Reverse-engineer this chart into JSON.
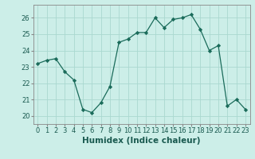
{
  "x": [
    0,
    1,
    2,
    3,
    4,
    5,
    6,
    7,
    8,
    9,
    10,
    11,
    12,
    13,
    14,
    15,
    16,
    17,
    18,
    19,
    20,
    21,
    22,
    23
  ],
  "y": [
    23.2,
    23.4,
    23.5,
    22.7,
    22.2,
    20.4,
    20.2,
    20.8,
    21.8,
    24.5,
    24.7,
    25.1,
    25.1,
    26.0,
    25.4,
    25.9,
    26.0,
    26.2,
    25.3,
    24.0,
    24.3,
    20.6,
    21.0,
    20.4
  ],
  "xlabel": "Humidex (Indice chaleur)",
  "xlim": [
    -0.5,
    23.5
  ],
  "ylim": [
    19.5,
    26.8
  ],
  "yticks": [
    20,
    21,
    22,
    23,
    24,
    25,
    26
  ],
  "xticks": [
    0,
    1,
    2,
    3,
    4,
    5,
    6,
    7,
    8,
    9,
    10,
    11,
    12,
    13,
    14,
    15,
    16,
    17,
    18,
    19,
    20,
    21,
    22,
    23
  ],
  "line_color": "#1a6b5a",
  "marker": "D",
  "marker_size": 2.2,
  "bg_color": "#cceee8",
  "grid_color": "#aad8d0",
  "label_fontsize": 7.5,
  "tick_fontsize": 6.0
}
